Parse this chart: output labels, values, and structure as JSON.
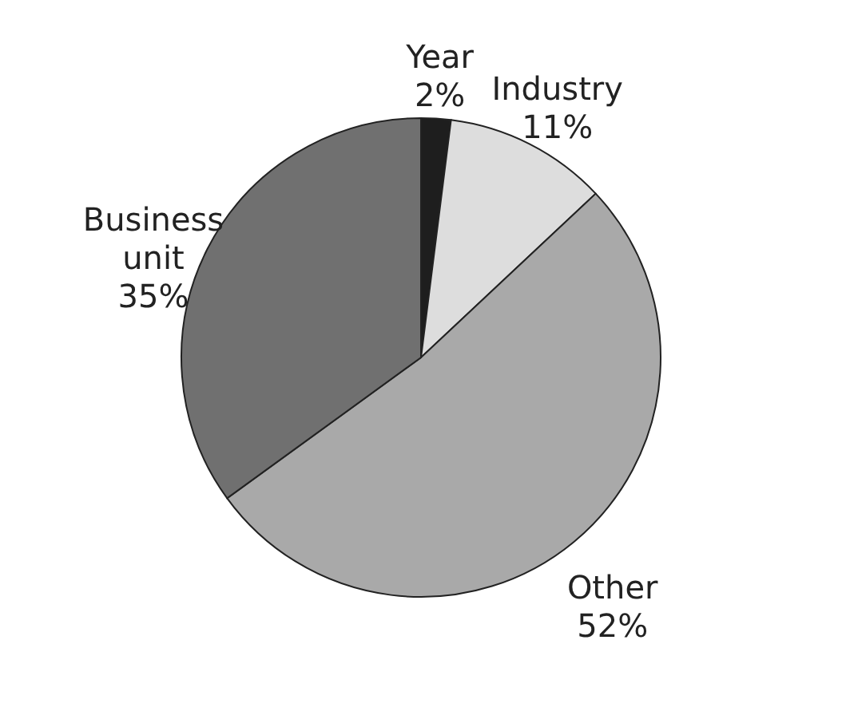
{
  "chart_data": {
    "type": "pie",
    "categories": [
      "Year",
      "Industry",
      "Other",
      "Business unit"
    ],
    "values": [
      2,
      11,
      52,
      35
    ],
    "value_labels": [
      "2%",
      "11%",
      "52%",
      "35%"
    ],
    "colors": [
      "#1e1e1e",
      "#dddddd",
      "#a9a9a9",
      "#707070"
    ],
    "legend": false
  }
}
